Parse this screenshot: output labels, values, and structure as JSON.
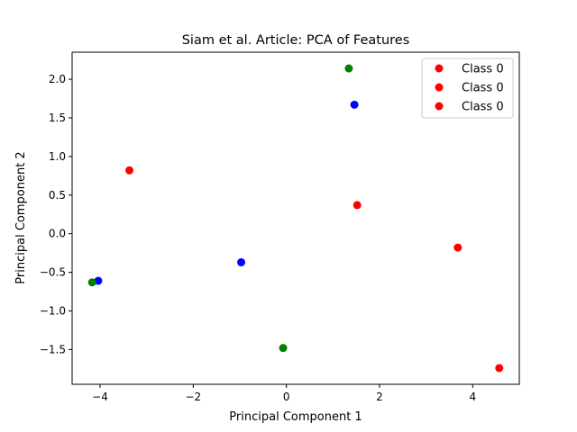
{
  "chart_data": {
    "type": "scatter",
    "title": "Siam et al. Article: PCA of Features",
    "xlabel": "Principal Component 1",
    "ylabel": "Principal Component 2",
    "xlim": [
      -4.6,
      5.0
    ],
    "ylim": [
      -1.95,
      2.35
    ],
    "xticks": [
      -4,
      -2,
      0,
      2,
      4
    ],
    "xtick_labels": [
      "−4",
      "−2",
      "0",
      "2",
      "4"
    ],
    "yticks": [
      -1.5,
      -1.0,
      -0.5,
      0.0,
      0.5,
      1.0,
      1.5,
      2.0
    ],
    "ytick_labels": [
      "−1.5",
      "−1.0",
      "−0.5",
      "0.0",
      "0.5",
      "1.0",
      "1.5",
      "2.0"
    ],
    "grid": false,
    "legend_position": "top-right",
    "legend": [
      {
        "label": "Class 0",
        "color": "#ff0000"
      },
      {
        "label": "Class 0",
        "color": "#ff0000"
      },
      {
        "label": "Class 0",
        "color": "#ff0000"
      }
    ],
    "points": [
      {
        "x": -3.37,
        "y": 0.82,
        "color": "#ff0000"
      },
      {
        "x": 1.52,
        "y": 0.37,
        "color": "#ff0000"
      },
      {
        "x": 3.68,
        "y": -0.18,
        "color": "#ff0000"
      },
      {
        "x": 4.57,
        "y": -1.74,
        "color": "#ff0000"
      },
      {
        "x": 1.46,
        "y": 1.67,
        "color": "#0000ff"
      },
      {
        "x": -0.97,
        "y": -0.37,
        "color": "#0000ff"
      },
      {
        "x": -4.04,
        "y": -0.61,
        "color": "#0000ff"
      },
      {
        "x": 1.34,
        "y": 2.14,
        "color": "#008000"
      },
      {
        "x": -4.17,
        "y": -0.63,
        "color": "#008000"
      },
      {
        "x": -0.07,
        "y": -1.48,
        "color": "#008000"
      }
    ]
  }
}
